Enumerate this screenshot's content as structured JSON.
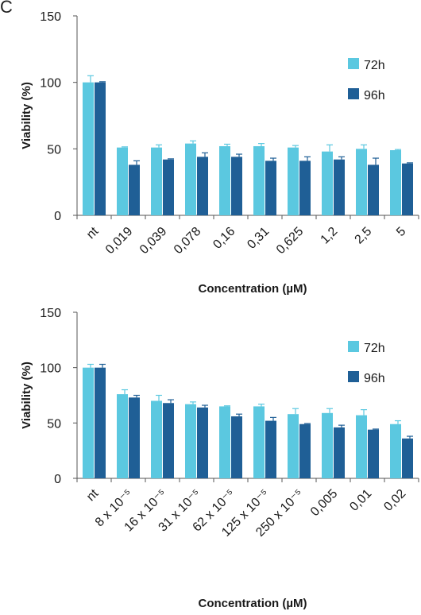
{
  "panel_label": "C",
  "colors": {
    "72h": "#5bc8e0",
    "96h": "#1f5f96",
    "axis": "#555555"
  },
  "chart_data": [
    {
      "type": "bar",
      "xlabel": "Concentration (µM)",
      "ylabel": "Viability (%)",
      "ylim": [
        0,
        150
      ],
      "yticks": [
        0,
        50,
        100,
        150
      ],
      "grid": false,
      "legend_position": "right",
      "categories": [
        "nt",
        "0,019",
        "0,039",
        "0,078",
        "0,16",
        "0,31",
        "0,625",
        "1,2",
        "2,5",
        "5"
      ],
      "series": [
        {
          "name": "72h",
          "values": [
            100,
            51,
            51,
            54,
            52,
            52,
            51,
            48,
            50,
            49
          ],
          "errors": [
            5,
            0.5,
            2,
            2,
            1.5,
            2,
            1.5,
            5,
            3,
            0.5
          ]
        },
        {
          "name": "96h",
          "values": [
            100,
            38,
            42,
            44,
            44,
            41,
            41,
            42,
            38,
            39
          ],
          "errors": [
            0.5,
            3,
            0.5,
            3,
            2,
            2,
            3,
            2,
            5,
            0.5
          ]
        }
      ]
    },
    {
      "type": "bar",
      "xlabel": "Concentration (µM)",
      "ylabel": "Viability (%)",
      "ylim": [
        0,
        150
      ],
      "yticks": [
        0,
        50,
        100,
        150
      ],
      "grid": false,
      "legend_position": "right",
      "categories": [
        "nt",
        "8 x 10⁻⁵",
        "16 x 10⁻⁵",
        "31 x 10⁻⁵",
        "62 x 10⁻⁵",
        "125 x 10⁻⁵",
        "250 x 10⁻⁵",
        "0,005",
        "0,01",
        "0,02"
      ],
      "series": [
        {
          "name": "72h",
          "values": [
            100,
            76,
            70,
            67,
            65,
            65,
            58,
            59,
            57,
            49
          ],
          "errors": [
            3,
            4,
            5,
            2,
            0.5,
            2,
            5,
            4,
            5,
            3
          ]
        },
        {
          "name": "96h",
          "values": [
            100,
            73,
            68,
            64,
            56,
            52,
            49,
            46,
            44,
            36
          ],
          "errors": [
            3,
            2,
            3,
            2,
            2,
            3,
            0.5,
            2,
            0.5,
            2
          ]
        }
      ]
    }
  ]
}
